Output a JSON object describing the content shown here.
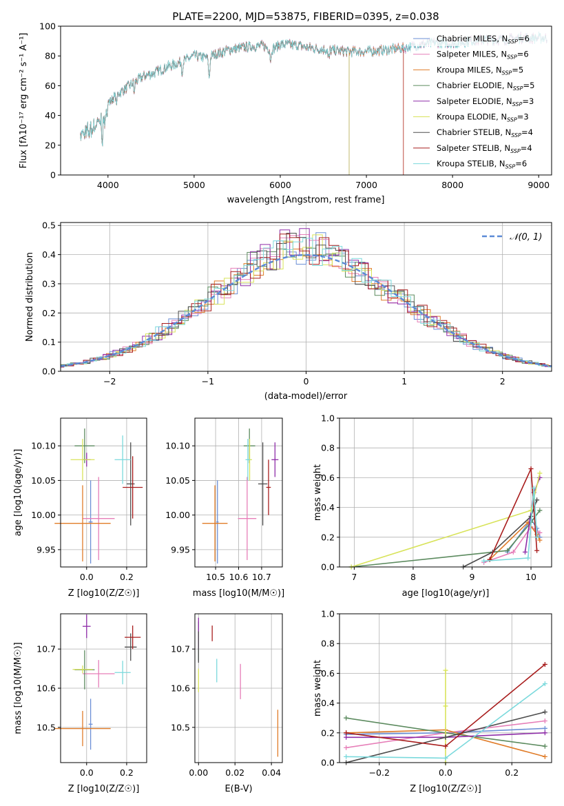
{
  "palette": {
    "Chabrier MILES": "#6b8fd6",
    "Salpeter MILES": "#e67eb8",
    "Kroupa MILES": "#e07b27",
    "Chabrier ELODIE": "#5b8a5e",
    "Salpeter ELODIE": "#8e2ca8",
    "Kroupa ELODIE": "#d8e35a",
    "Chabrier STELIB": "#4d4d4d",
    "Salpeter STELIB": "#a81c1c",
    "Kroupa STELIB": "#7ad9dc"
  },
  "chart_data": [
    {
      "type": "line",
      "title": "PLATE=2200, MJD=53875, FIBERID=0395, z=0.038",
      "xlabel": "wavelength [Angstrom, rest frame]",
      "ylabel": "Flux [fλ10⁻¹⁷ erg cm⁻² s⁻¹ A⁻¹]",
      "xlim": [
        3450,
        9150
      ],
      "ylim": [
        0,
        100
      ],
      "xticks": [
        4000,
        5000,
        6000,
        7000,
        8000,
        9000
      ],
      "yticks": [
        0,
        20,
        40,
        60,
        80,
        100
      ],
      "grid": false,
      "legend_position": "upper-right",
      "spectrum_continuum": [
        [
          3680,
          27
        ],
        [
          3750,
          28
        ],
        [
          3850,
          33
        ],
        [
          3950,
          38
        ],
        [
          4000,
          48
        ],
        [
          4100,
          54
        ],
        [
          4250,
          60
        ],
        [
          4400,
          66
        ],
        [
          4550,
          69
        ],
        [
          4700,
          73
        ],
        [
          4860,
          76
        ],
        [
          5000,
          80
        ],
        [
          5150,
          79
        ],
        [
          5175,
          73
        ],
        [
          5200,
          80
        ],
        [
          5400,
          84
        ],
        [
          5600,
          86
        ],
        [
          5800,
          87
        ],
        [
          5890,
          84
        ],
        [
          6000,
          88
        ],
        [
          6200,
          87
        ],
        [
          6400,
          85
        ],
        [
          6560,
          84
        ],
        [
          6800,
          83
        ],
        [
          7000,
          83
        ],
        [
          7200,
          84
        ],
        [
          7400,
          85
        ],
        [
          7600,
          87
        ],
        [
          7800,
          89
        ],
        [
          8000,
          88
        ],
        [
          8200,
          90
        ],
        [
          8400,
          91
        ],
        [
          8600,
          91
        ],
        [
          8800,
          92
        ],
        [
          9000,
          92
        ],
        [
          9100,
          92
        ]
      ],
      "series": [
        {
          "name": "Chabrier MILES",
          "legend": "Chabrier MILES, N",
          "nssp": "=6",
          "end": 9100
        },
        {
          "name": "Salpeter MILES",
          "legend": "Salpeter MILES, N",
          "nssp": "=6",
          "end": 9100
        },
        {
          "name": "Kroupa MILES",
          "legend": "Kroupa MILES, N",
          "nssp": "=5",
          "end": 7430
        },
        {
          "name": "Chabrier ELODIE",
          "legend": "Chabrier ELODIE, N",
          "nssp": "=5",
          "end": 6800
        },
        {
          "name": "Salpeter ELODIE",
          "legend": "Salpeter ELODIE, N",
          "nssp": "=3",
          "end": 6800
        },
        {
          "name": "Kroupa ELODIE",
          "legend": "Kroupa ELODIE, N",
          "nssp": "=3",
          "end": 6800
        },
        {
          "name": "Chabrier STELIB",
          "legend": "Chabrier STELIB, N",
          "nssp": "=4",
          "end": 9100
        },
        {
          "name": "Salpeter STELIB",
          "legend": "Salpeter STELIB, N",
          "nssp": "=4",
          "end": 7430
        },
        {
          "name": "Kroupa STELIB",
          "legend": "Kroupa STELIB, N",
          "nssp": "=6",
          "end": 9100
        }
      ],
      "nssp_subscript": "SSP"
    },
    {
      "type": "histogram",
      "xlabel": "(data-model)/error",
      "ylabel": "Normed distribution",
      "xlim": [
        -2.5,
        2.5
      ],
      "ylim": [
        0,
        0.51
      ],
      "xticks": [
        -2,
        -1,
        0,
        1,
        2
      ],
      "yticks": [
        0.0,
        0.1,
        0.2,
        0.3,
        0.4,
        0.5
      ],
      "grid": true,
      "legend_position": "upper-right",
      "legend_label": "𝒩(0, 1)",
      "reference_curve": "standard normal pdf",
      "bin_width": 0.1
    },
    {
      "type": "scatter",
      "xlabel": "Z [log10(Z/Z☉)]",
      "ylabel": "age  [log10(age/yr)]",
      "xlim": [
        -0.13,
        0.3
      ],
      "ylim": [
        9.925,
        10.14
      ],
      "xticks": [
        0.0,
        0.2
      ],
      "yticks": [
        9.95,
        10.0,
        10.05,
        10.1
      ],
      "grid": true,
      "points": [
        {
          "name": "Chabrier MILES",
          "x": 0.02,
          "y": 9.99,
          "xerr": 0.01,
          "yerr": 0.06
        },
        {
          "name": "Salpeter MILES",
          "x": 0.06,
          "y": 9.995,
          "xerr": 0.08,
          "yerr": 0.06
        },
        {
          "name": "Kroupa MILES",
          "x": -0.02,
          "y": 9.988,
          "xerr": 0.14,
          "yerr": 0.055
        },
        {
          "name": "Chabrier ELODIE",
          "x": -0.01,
          "y": 10.1,
          "xerr": 0.05,
          "yerr": 0.025
        },
        {
          "name": "Salpeter ELODIE",
          "x": 0.0,
          "y": 10.08,
          "xerr": 0.02,
          "yerr": 0.01
        },
        {
          "name": "Kroupa ELODIE",
          "x": -0.02,
          "y": 10.08,
          "xerr": 0.06,
          "yerr": 0.03
        },
        {
          "name": "Chabrier STELIB",
          "x": 0.22,
          "y": 10.045,
          "xerr": 0.02,
          "yerr": 0.06
        },
        {
          "name": "Salpeter STELIB",
          "x": 0.23,
          "y": 10.04,
          "xerr": 0.05,
          "yerr": 0.045
        },
        {
          "name": "Kroupa STELIB",
          "x": 0.18,
          "y": 10.08,
          "xerr": 0.04,
          "yerr": 0.035
        }
      ]
    },
    {
      "type": "scatter",
      "xlabel": "mass [log10(M/M☉)]",
      "xlim": [
        10.41,
        10.79
      ],
      "ylim": [
        9.925,
        10.14
      ],
      "xticks": [
        10.5,
        10.6,
        10.7
      ],
      "xticklabels": [
        "10.5",
        "10.6",
        "10.7"
      ],
      "yticks": [
        9.95,
        10.0,
        10.05,
        10.1
      ],
      "grid": true,
      "points": [
        {
          "name": "Chabrier MILES",
          "x": 10.508,
          "y": 9.99,
          "xerr": 0.005,
          "yerr": 0.06
        },
        {
          "name": "Salpeter MILES",
          "x": 10.637,
          "y": 9.995,
          "xerr": 0.04,
          "yerr": 0.06
        },
        {
          "name": "Kroupa MILES",
          "x": 10.497,
          "y": 9.988,
          "xerr": 0.055,
          "yerr": 0.055
        },
        {
          "name": "Chabrier ELODIE",
          "x": 10.647,
          "y": 10.1,
          "xerr": 0.025,
          "yerr": 0.025
        },
        {
          "name": "Salpeter ELODIE",
          "x": 10.758,
          "y": 10.08,
          "xerr": 0.015,
          "yerr": 0.025
        },
        {
          "name": "Kroupa ELODIE",
          "x": 10.648,
          "y": 10.08,
          "xerr": 0.01,
          "yerr": 0.03
        },
        {
          "name": "Chabrier STELIB",
          "x": 10.705,
          "y": 10.045,
          "xerr": 0.02,
          "yerr": 0.06
        },
        {
          "name": "Salpeter STELIB",
          "x": 10.73,
          "y": 10.04,
          "xerr": 0.01,
          "yerr": 0.04
        },
        {
          "name": "Kroupa STELIB",
          "x": 10.64,
          "y": 10.08,
          "xerr": 0.01,
          "yerr": 0.03
        }
      ]
    },
    {
      "type": "line",
      "xlabel": "age  [log10(age/yr)]",
      "ylabel": "mass weight",
      "xlim": [
        6.75,
        10.35
      ],
      "ylim": [
        0,
        1.0
      ],
      "xticks": [
        7,
        8,
        9,
        10
      ],
      "yticks": [
        0.0,
        0.2,
        0.4,
        0.6,
        0.8,
        1.0
      ],
      "grid": true,
      "series": [
        {
          "name": "Chabrier MILES",
          "x": [
            9.6,
            10.0,
            10.1,
            10.15
          ],
          "y": [
            0.1,
            0.32,
            0.26,
            0.2
          ]
        },
        {
          "name": "Salpeter MILES",
          "x": [
            9.2,
            9.7,
            10.0,
            10.15
          ],
          "y": [
            0.03,
            0.1,
            0.27,
            0.23
          ]
        },
        {
          "name": "Kroupa MILES",
          "x": [
            9.3,
            9.95,
            10.1,
            10.15
          ],
          "y": [
            0.05,
            0.3,
            0.22,
            0.18
          ]
        },
        {
          "name": "Chabrier ELODIE",
          "x": [
            6.95,
            9.6,
            10.0,
            10.15
          ],
          "y": [
            0.0,
            0.11,
            0.3,
            0.38
          ]
        },
        {
          "name": "Salpeter ELODIE",
          "x": [
            9.9,
            10.05,
            10.15
          ],
          "y": [
            0.1,
            0.5,
            0.6
          ]
        },
        {
          "name": "Kroupa ELODIE",
          "x": [
            6.95,
            10.0,
            10.15
          ],
          "y": [
            0.0,
            0.38,
            0.63
          ]
        },
        {
          "name": "Chabrier STELIB",
          "x": [
            8.85,
            9.35,
            10.0,
            10.1
          ],
          "y": [
            0.0,
            0.1,
            0.34,
            0.45
          ]
        },
        {
          "name": "Salpeter STELIB",
          "x": [
            9.3,
            10.0,
            10.1
          ],
          "y": [
            0.05,
            0.66,
            0.11
          ]
        },
        {
          "name": "Kroupa STELIB",
          "x": [
            9.2,
            9.95,
            10.05,
            10.1
          ],
          "y": [
            0.04,
            0.06,
            0.53,
            0.2
          ]
        }
      ]
    },
    {
      "type": "scatter",
      "xlabel": "Z [log10(Z/Z☉)]",
      "ylabel": "mass [log10(M/M☉)]",
      "xlim": [
        -0.13,
        0.3
      ],
      "ylim": [
        10.41,
        10.79
      ],
      "xticks": [
        0.0,
        0.2
      ],
      "yticks": [
        10.5,
        10.6,
        10.7
      ],
      "yticklabels": [
        "10.5",
        "10.6",
        "10.7"
      ],
      "grid": true,
      "points": [
        {
          "name": "Chabrier MILES",
          "x": 0.02,
          "y": 10.508,
          "xerr": 0.01,
          "yerr": 0.065
        },
        {
          "name": "Salpeter MILES",
          "x": 0.06,
          "y": 10.637,
          "xerr": 0.08,
          "yerr": 0.035
        },
        {
          "name": "Kroupa MILES",
          "x": -0.02,
          "y": 10.497,
          "xerr": 0.14,
          "yerr": 0.045
        },
        {
          "name": "Chabrier ELODIE",
          "x": -0.01,
          "y": 10.647,
          "xerr": 0.05,
          "yerr": 0.05
        },
        {
          "name": "Salpeter ELODIE",
          "x": 0.0,
          "y": 10.758,
          "xerr": 0.02,
          "yerr": 0.03
        },
        {
          "name": "Kroupa ELODIE",
          "x": -0.02,
          "y": 10.648,
          "xerr": 0.05,
          "yerr": 0.01
        },
        {
          "name": "Chabrier STELIB",
          "x": 0.22,
          "y": 10.705,
          "xerr": 0.03,
          "yerr": 0.035
        },
        {
          "name": "Salpeter STELIB",
          "x": 0.23,
          "y": 10.73,
          "xerr": 0.04,
          "yerr": 0.03
        },
        {
          "name": "Kroupa STELIB",
          "x": 0.18,
          "y": 10.64,
          "xerr": 0.04,
          "yerr": 0.03
        }
      ]
    },
    {
      "type": "scatter",
      "xlabel": "E(B-V)",
      "xlim": [
        -0.002,
        0.046
      ],
      "ylim": [
        10.41,
        10.79
      ],
      "xticks": [
        0.0,
        0.02,
        0.04
      ],
      "xticklabels": [
        "0.00",
        "0.02",
        "0.04"
      ],
      "yticks": [
        10.5,
        10.6,
        10.7
      ],
      "yticklabels": [
        "10.5",
        "10.6",
        "10.7"
      ],
      "grid": true,
      "points": [
        {
          "name": "Chabrier MILES",
          "x": 0.0,
          "y": 10.7,
          "xerr": 0,
          "yerr": 0.03
        },
        {
          "name": "Salpeter MILES",
          "x": 0.023,
          "y": 10.617,
          "xerr": 0,
          "yerr": 0.045
        },
        {
          "name": "Kroupa MILES",
          "x": 0.0435,
          "y": 10.485,
          "xerr": 0,
          "yerr": 0.06
        },
        {
          "name": "Chabrier ELODIE",
          "x": 0.0,
          "y": 10.72,
          "xerr": 0,
          "yerr": 0.05
        },
        {
          "name": "Salpeter ELODIE",
          "x": 0.0,
          "y": 10.74,
          "xerr": 0,
          "yerr": 0.04
        },
        {
          "name": "Kroupa ELODIE",
          "x": 0.0,
          "y": 10.62,
          "xerr": 0,
          "yerr": 0.03
        },
        {
          "name": "Chabrier STELIB",
          "x": 0.0,
          "y": 10.705,
          "xerr": 0,
          "yerr": 0.04
        },
        {
          "name": "Salpeter STELIB",
          "x": 0.0075,
          "y": 10.74,
          "xerr": 0,
          "yerr": 0.02
        },
        {
          "name": "Kroupa STELIB",
          "x": 0.01,
          "y": 10.645,
          "xerr": 0,
          "yerr": 0.03
        }
      ]
    },
    {
      "type": "line",
      "xlabel": "Z [log10(Z/Z☉)]",
      "ylabel": "mass weight",
      "xlim": [
        -0.32,
        0.32
      ],
      "ylim": [
        0,
        1.0
      ],
      "xticks": [
        -0.2,
        0.0,
        0.2
      ],
      "xticklabels": [
        "−0.2",
        "0.0",
        "0.2"
      ],
      "yticks": [
        0.0,
        0.2,
        0.4,
        0.6,
        0.8,
        1.0
      ],
      "grid": true,
      "series": [
        {
          "name": "Chabrier MILES",
          "x": [
            -0.3,
            0.0,
            0.3
          ],
          "y": [
            0.19,
            0.2,
            0.23
          ]
        },
        {
          "name": "Salpeter MILES",
          "x": [
            -0.3,
            0.0,
            0.3
          ],
          "y": [
            0.1,
            0.2,
            0.28
          ]
        },
        {
          "name": "Kroupa MILES",
          "x": [
            -0.3,
            0.0,
            0.3
          ],
          "y": [
            0.2,
            0.22,
            0.04
          ]
        },
        {
          "name": "Chabrier ELODIE",
          "x": [
            -0.3,
            0.0,
            0.3
          ],
          "y": [
            0.3,
            0.2,
            0.11
          ]
        },
        {
          "name": "Salpeter ELODIE",
          "x": [
            -0.3,
            0.0,
            0.3
          ],
          "y": [
            0.17,
            0.17,
            0.2
          ]
        },
        {
          "name": "Kroupa ELODIE",
          "x": [
            0.0,
            0.0,
            0.0
          ],
          "y": [
            0.0,
            0.38,
            0.62
          ]
        },
        {
          "name": "Chabrier STELIB",
          "x": [
            -0.3,
            0.0,
            0.3
          ],
          "y": [
            0.0,
            0.17,
            0.34
          ]
        },
        {
          "name": "Salpeter STELIB",
          "x": [
            -0.3,
            0.0,
            0.3
          ],
          "y": [
            0.2,
            0.11,
            0.66
          ]
        },
        {
          "name": "Kroupa STELIB",
          "x": [
            -0.3,
            0.0,
            0.3
          ],
          "y": [
            0.04,
            0.03,
            0.53
          ]
        }
      ]
    }
  ]
}
